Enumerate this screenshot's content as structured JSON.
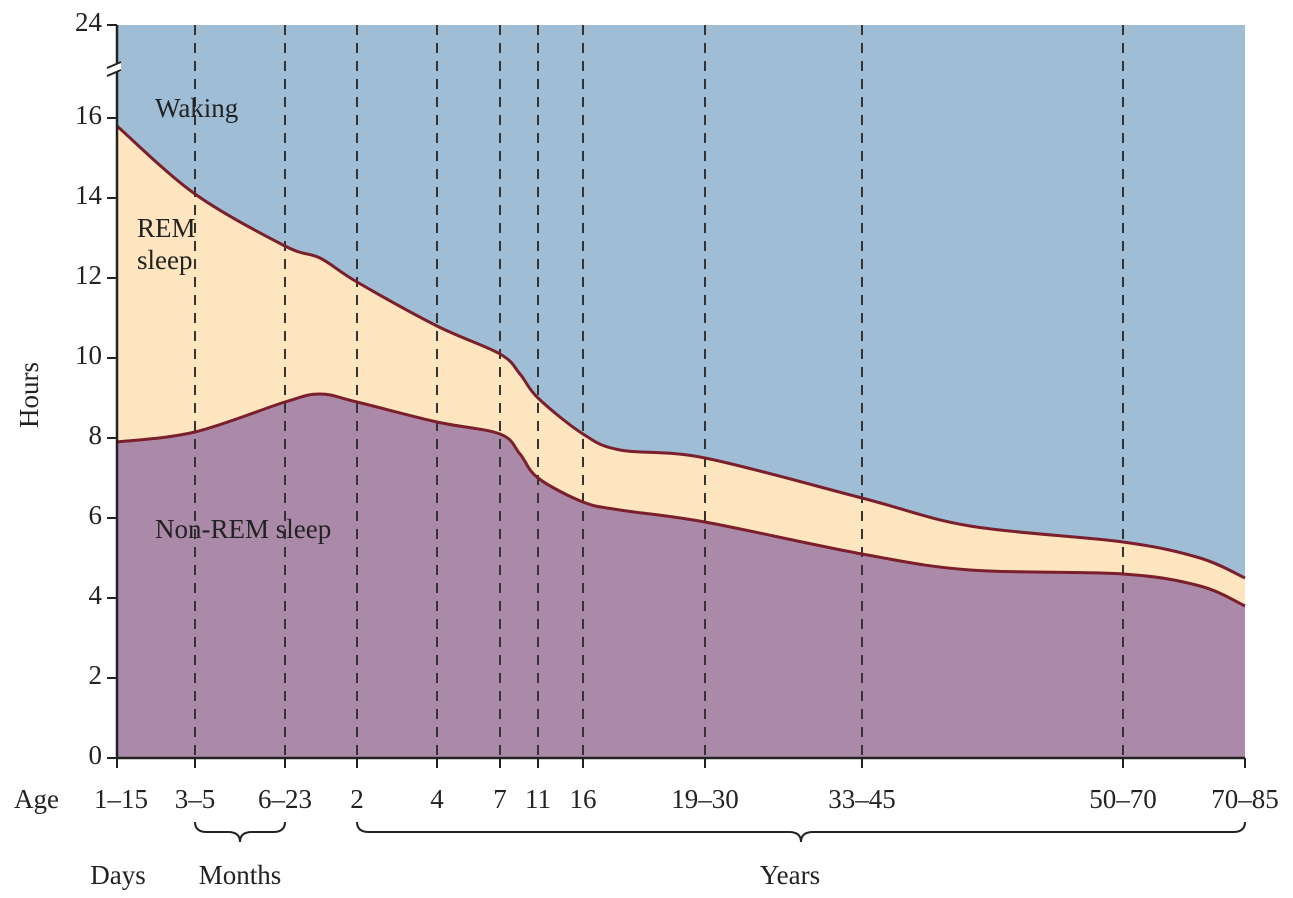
{
  "chart_data": {
    "type": "stacked-area",
    "y_label": "Hours",
    "x_label": "Age",
    "categories": [
      "1–15",
      "3–5",
      "6–23",
      null,
      "2",
      "4",
      "7",
      null,
      "11",
      "16",
      null,
      "19–30",
      "33–45",
      null,
      "50–70",
      null,
      "70–85"
    ],
    "series": [
      {
        "name": "Non-REM sleep",
        "color": "#ab8aa9",
        "values": [
          7.9,
          8.15,
          8.9,
          9.1,
          8.9,
          8.4,
          8.1,
          7.6,
          7.0,
          6.4,
          6.2,
          5.9,
          5.1,
          4.7,
          4.6,
          4.3,
          3.8
        ]
      },
      {
        "name": "REM sleep",
        "color": "#fde5c0",
        "values": [
          7.9,
          5.95,
          3.9,
          3.4,
          3.0,
          2.4,
          2.0,
          2.0,
          2.0,
          1.7,
          1.5,
          1.6,
          1.4,
          1.1,
          0.8,
          0.7,
          0.7
        ]
      },
      {
        "name": "Waking",
        "color": "#9fbed5",
        "values": [
          8.2,
          9.9,
          11.2,
          11.5,
          12.1,
          13.2,
          13.9,
          14.4,
          15.0,
          15.9,
          16.3,
          16.5,
          17.5,
          18.2,
          18.6,
          19.0,
          19.5
        ]
      }
    ],
    "ylim": [
      0,
      24
    ],
    "yticks": [
      0,
      2,
      4,
      6,
      8,
      10,
      12,
      14,
      16,
      24
    ],
    "axis_break": true,
    "line_color": "#7a1f2b",
    "age_groups": [
      "Days",
      "Months",
      "Years"
    ]
  }
}
